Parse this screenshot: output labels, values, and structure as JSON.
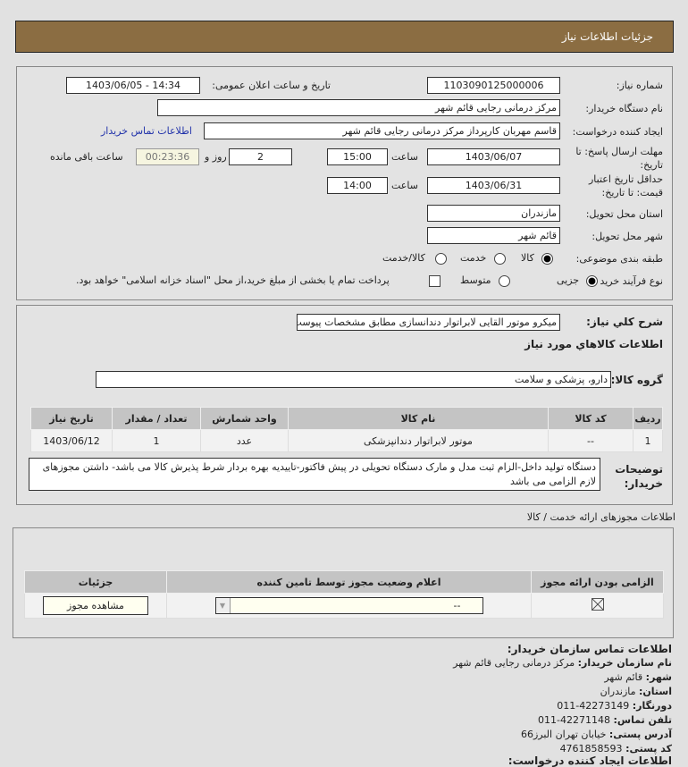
{
  "title": "جزئیات اطلاعات نیاز",
  "need_number_label": "شماره نیاز:",
  "need_number": "1103090125000006",
  "announce_label": "تاریخ و ساعت اعلان عمومی:",
  "announce_value": "1403/06/05 - 14:34",
  "buyer_label": "نام دستگاه خریدار:",
  "buyer": "مرکز درمانی رجایی قائم شهر",
  "creator_label": "ایجاد کننده درخواست:",
  "creator": "قاسم مهربان کارپرداز مرکز درمانی رجایی قائم شهر",
  "contact_link": "اطلاعات تماس خریدار",
  "deadline_label_1": "مهلت ارسال پاسخ: تا",
  "deadline_label_2": "تاریخ:",
  "deadline_date": "1403/06/07",
  "time_label": "ساعت",
  "deadline_time": "15:00",
  "days": "2",
  "days_label": "روز و",
  "remaining": "00:23:36",
  "remaining_label": "ساعت باقی مانده",
  "validity_label_1": "حداقل تاریخ اعتبار",
  "validity_label_2": "قیمت: تا تاریخ:",
  "validity_date": "1403/06/31",
  "validity_time": "14:00",
  "province_label": "استان محل تحویل:",
  "province": "مازندران",
  "city_label": "شهر محل تحویل:",
  "city": "قائم شهر",
  "category_label": "طبقه بندی موضوعی:",
  "category_options": [
    "کالا",
    "خدمت",
    "کالا/خدمت"
  ],
  "category_selected": "کالا",
  "process_label": "نوع فرآیند خرید :",
  "process_options": [
    "جزیی",
    "متوسط"
  ],
  "process_selected": "جزیی",
  "payment_note": "پرداخت تمام یا بخشی از مبلغ خرید،از محل \"اسناد خزانه اسلامی\" خواهد بود.",
  "summary_label": "شرح کلي نياز:",
  "summary": "میکرو موتور القایی لابراتوار دندانسازی مطابق مشخصات پیوست",
  "goods_heading": "اطلاعات كالاهاي مورد نياز",
  "group_label": "گروه کالا:",
  "group": "دارو، پزشکی و سلامت",
  "goods_table": {
    "headers": [
      "ردیف",
      "کد کالا",
      "نام کالا",
      "واحد شمارش",
      "تعداد / مقدار",
      "تاریخ نیاز"
    ],
    "rows": [
      [
        "1",
        "--",
        "موتور لابراتوار دندانپزشکی",
        "عدد",
        "1",
        "1403/06/12"
      ]
    ]
  },
  "notes_label_1": "توضیحات",
  "notes_label_2": "خریدار:",
  "notes": "دستگاه تولید داخل-الزام ثبت مدل و مارک دستگاه تحویلی در پیش فاکتور-تاییدیه بهره بردار شرط پذیرش کالا می باشد- داشتن مجوزهای لازم الزامی می باشد",
  "permits_heading": "اطلاعات مجوزهای ارائه خدمت / کالا",
  "permits_table": {
    "headers": [
      "الزامی بودن ارائه مجوز",
      "اعلام وضعیت مجوز توسط تامین کننده",
      "جزئیات"
    ],
    "select_value": "--",
    "view_button": "مشاهده مجوز",
    "required_checked": true
  },
  "contact": {
    "heading": "اطلاعات تماس سازمان خریدار:",
    "items": [
      {
        "k": "نام سازمان خریدار:",
        "v": "مرکز درمانی رجایی قائم شهر"
      },
      {
        "k": "شهر:",
        "v": "قائم شهر"
      },
      {
        "k": "استان:",
        "v": "مازندران"
      },
      {
        "k": "دورنگار:",
        "v": "42273149-011"
      },
      {
        "k": "تلفن تماس:",
        "v": "42271148-011"
      },
      {
        "k": "آدرس پستی:",
        "v": "خیابان تهران البرز66"
      },
      {
        "k": "کد پستی:",
        "v": "4761858593"
      }
    ],
    "next_heading": "اطلاعات ایجاد کننده درخواست:"
  }
}
